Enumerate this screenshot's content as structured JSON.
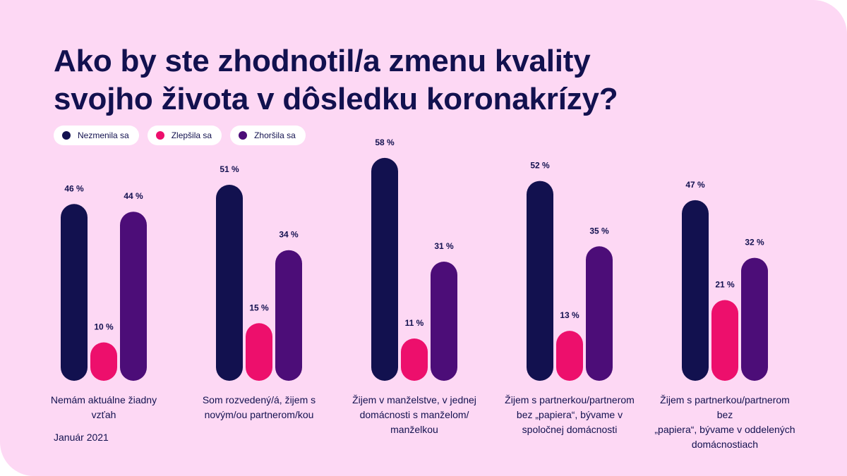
{
  "title_lines": [
    "Ako by ste zhodnotil/a zmenu kvality",
    "svojho života v dôsledku koronakrízy?"
  ],
  "date_note": "Január 2021",
  "colors": {
    "background": "#fdd8f4",
    "text": "#12114f",
    "nezmenila": "#12114f",
    "zlepsila": "#ed0f6c",
    "zhorsila": "#4c0d78"
  },
  "chart_data": {
    "type": "bar",
    "title": "Ako by ste zhodnotil/a zmenu kvality svojho života v dôsledku koronakrízy?",
    "categories": [
      [
        "Nemám aktuálne žiadny",
        "vzťah"
      ],
      [
        "Som rozvedený/á, žijem s",
        "novým/ou partnerom/kou"
      ],
      [
        "Žijem v manželstve, v jednej",
        "domácnosti s manželom/",
        "manželkou"
      ],
      [
        "Žijem s partnerkou/partnerom",
        "bez „papiera“, bývame v",
        "spoločnej domácnosti"
      ],
      [
        "Žijem s partnerkou/partnerom bez",
        "„papiera“, bývame v oddelených",
        "domácnostiach"
      ]
    ],
    "series": [
      {
        "name": "Nezmenila sa",
        "color": "#12114f",
        "values": [
          46,
          51,
          58,
          52,
          47
        ],
        "labels": [
          "46 %",
          "51 %",
          "58 %",
          "52 %",
          "47 %"
        ]
      },
      {
        "name": "Zlepšila sa",
        "color": "#ed0f6c",
        "values": [
          10,
          15,
          11,
          13,
          21
        ],
        "labels": [
          "10 %",
          "15 %",
          "11 %",
          "13 %",
          "21 %"
        ]
      },
      {
        "name": "Zhoršila sa",
        "color": "#4c0d78",
        "values": [
          44,
          34,
          31,
          35,
          32
        ],
        "labels": [
          "44 %",
          "34 %",
          "31 %",
          "35 %",
          "32 %"
        ]
      }
    ],
    "unit": "%",
    "legend_position": "top-left",
    "grid": false
  }
}
